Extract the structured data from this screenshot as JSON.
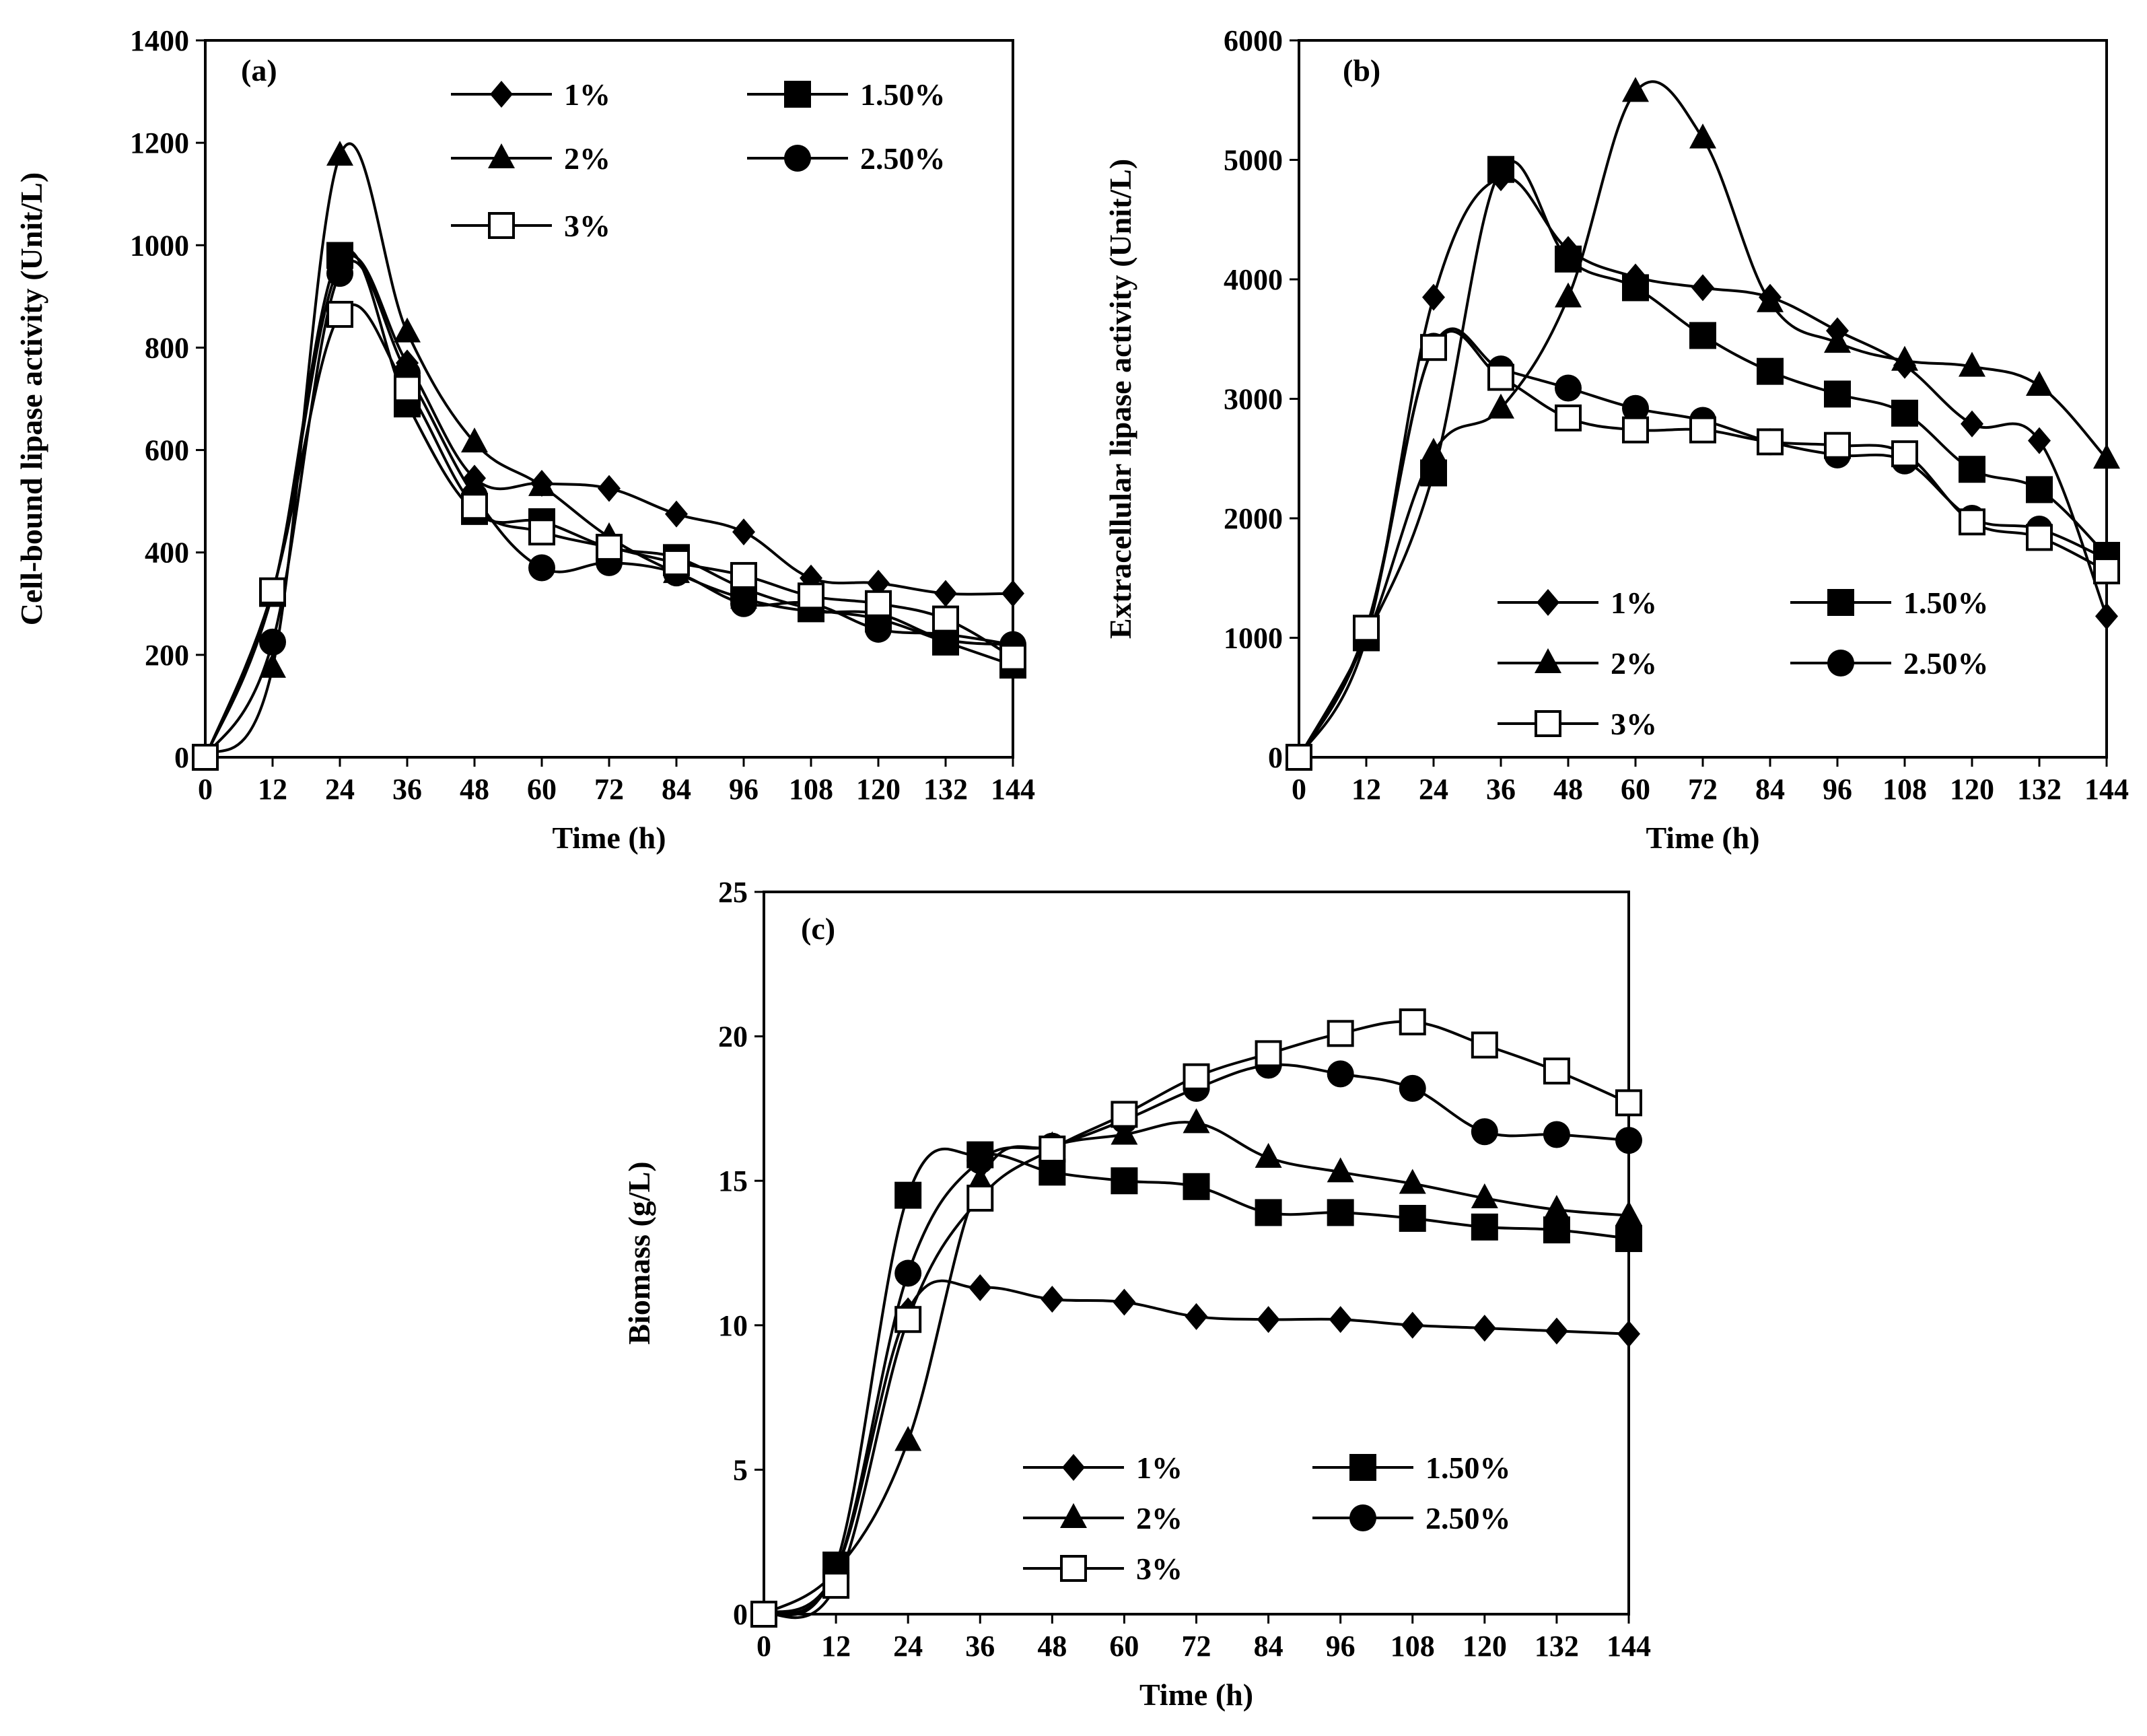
{
  "chart_data": [
    {
      "type": "line",
      "panel": "(a)",
      "title": "",
      "xlabel": "Time (h)",
      "ylabel": "Cell-bound lipase activity (Unit/L)",
      "x": [
        0,
        12,
        24,
        36,
        48,
        60,
        72,
        84,
        96,
        108,
        120,
        132,
        144
      ],
      "xticks": [
        "0",
        "12",
        "24",
        "36",
        "48",
        "60",
        "72",
        "84",
        "96",
        "108",
        "120",
        "132",
        "144"
      ],
      "yticks": [
        "0",
        "200",
        "400",
        "600",
        "800",
        "1000",
        "1200",
        "1400"
      ],
      "xlim": [
        0,
        144
      ],
      "ylim": [
        0,
        1400
      ],
      "series": [
        {
          "name": "1%",
          "marker": "diamond",
          "values": [
            0,
            320,
            960,
            770,
            545,
            535,
            525,
            475,
            440,
            350,
            340,
            320,
            320
          ]
        },
        {
          "name": "1.50%",
          "marker": "square",
          "values": [
            0,
            320,
            980,
            690,
            480,
            460,
            410,
            390,
            330,
            290,
            270,
            225,
            180
          ]
        },
        {
          "name": "2%",
          "marker": "triangle",
          "values": [
            0,
            175,
            1175,
            830,
            615,
            530,
            430,
            360,
            310,
            285,
            280,
            230,
            220
          ]
        },
        {
          "name": "2.50%",
          "marker": "circle",
          "values": [
            0,
            225,
            945,
            750,
            510,
            370,
            380,
            360,
            300,
            300,
            250,
            240,
            220
          ]
        },
        {
          "name": "3%",
          "marker": "open-square",
          "values": [
            0,
            325,
            865,
            720,
            490,
            440,
            410,
            380,
            355,
            315,
            300,
            270,
            195
          ]
        }
      ],
      "legend": [
        "1%",
        "1.50%",
        "2%",
        "2.50%",
        "3%"
      ]
    },
    {
      "type": "line",
      "panel": "(b)",
      "title": "",
      "xlabel": "Time (h)",
      "ylabel": "Extracellular lipase activity (Unit/L)",
      "x": [
        0,
        12,
        24,
        36,
        48,
        60,
        72,
        84,
        96,
        108,
        120,
        132,
        144
      ],
      "xticks": [
        "0",
        "12",
        "24",
        "36",
        "48",
        "60",
        "72",
        "84",
        "96",
        "108",
        "120",
        "132",
        "144"
      ],
      "yticks": [
        "0",
        "1000",
        "2000",
        "3000",
        "4000",
        "5000",
        "6000"
      ],
      "xlim": [
        0,
        144
      ],
      "ylim": [
        0,
        6000
      ],
      "series": [
        {
          "name": "1%",
          "marker": "diamond",
          "values": [
            0,
            1000,
            3850,
            4850,
            4250,
            4020,
            3930,
            3850,
            3570,
            3280,
            2790,
            2650,
            1180
          ]
        },
        {
          "name": "1.50%",
          "marker": "square",
          "values": [
            0,
            1000,
            2380,
            4920,
            4170,
            3930,
            3530,
            3230,
            3040,
            2880,
            2410,
            2240,
            1690
          ]
        },
        {
          "name": "2%",
          "marker": "triangle",
          "values": [
            0,
            1000,
            2550,
            2920,
            3850,
            5570,
            5180,
            3810,
            3470,
            3320,
            3270,
            3110,
            2500
          ]
        },
        {
          "name": "2.50%",
          "marker": "circle",
          "values": [
            0,
            1050,
            3440,
            3250,
            3090,
            2920,
            2820,
            2640,
            2530,
            2480,
            2000,
            1910,
            1660
          ]
        },
        {
          "name": "3%",
          "marker": "open-square",
          "values": [
            0,
            1080,
            3430,
            3180,
            2840,
            2740,
            2740,
            2640,
            2610,
            2540,
            1970,
            1840,
            1560
          ]
        }
      ],
      "legend": [
        "1%",
        "1.50%",
        "2%",
        "2.50%",
        "3%"
      ]
    },
    {
      "type": "line",
      "panel": "(c)",
      "title": "",
      "xlabel": "Time (h)",
      "ylabel": "Biomass (g/L)",
      "x": [
        0,
        12,
        24,
        36,
        48,
        60,
        72,
        84,
        96,
        108,
        120,
        132,
        144
      ],
      "xticks": [
        "0",
        "12",
        "24",
        "36",
        "48",
        "60",
        "72",
        "84",
        "96",
        "108",
        "120",
        "132",
        "144"
      ],
      "yticks": [
        "0",
        "5",
        "10",
        "15",
        "20",
        "25"
      ],
      "xlim": [
        0,
        144
      ],
      "ylim": [
        0,
        25
      ],
      "series": [
        {
          "name": "1%",
          "marker": "diamond",
          "values": [
            0,
            1.5,
            10.5,
            11.3,
            10.9,
            10.8,
            10.3,
            10.2,
            10.2,
            10.0,
            9.9,
            9.8,
            9.7
          ]
        },
        {
          "name": "1.50%",
          "marker": "square",
          "values": [
            0,
            1.7,
            14.5,
            15.9,
            15.3,
            15.0,
            14.8,
            13.9,
            13.9,
            13.7,
            13.4,
            13.3,
            13.0
          ]
        },
        {
          "name": "2%",
          "marker": "triangle",
          "values": [
            0,
            1.5,
            6.0,
            15.0,
            16.2,
            16.6,
            17.0,
            15.8,
            15.3,
            14.9,
            14.4,
            14.0,
            13.8
          ]
        },
        {
          "name": "2.50%",
          "marker": "circle",
          "values": [
            0,
            1.5,
            11.8,
            15.7,
            16.2,
            17.1,
            18.2,
            19.0,
            18.7,
            18.2,
            16.7,
            16.6,
            16.4
          ]
        },
        {
          "name": "3%",
          "marker": "open-square",
          "values": [
            0,
            1.0,
            10.2,
            14.4,
            16.1,
            17.3,
            18.6,
            19.4,
            20.1,
            20.5,
            19.7,
            18.8,
            17.7
          ]
        }
      ],
      "legend": [
        "1%",
        "1.50%",
        "2%",
        "2.50%",
        "3%"
      ]
    }
  ]
}
